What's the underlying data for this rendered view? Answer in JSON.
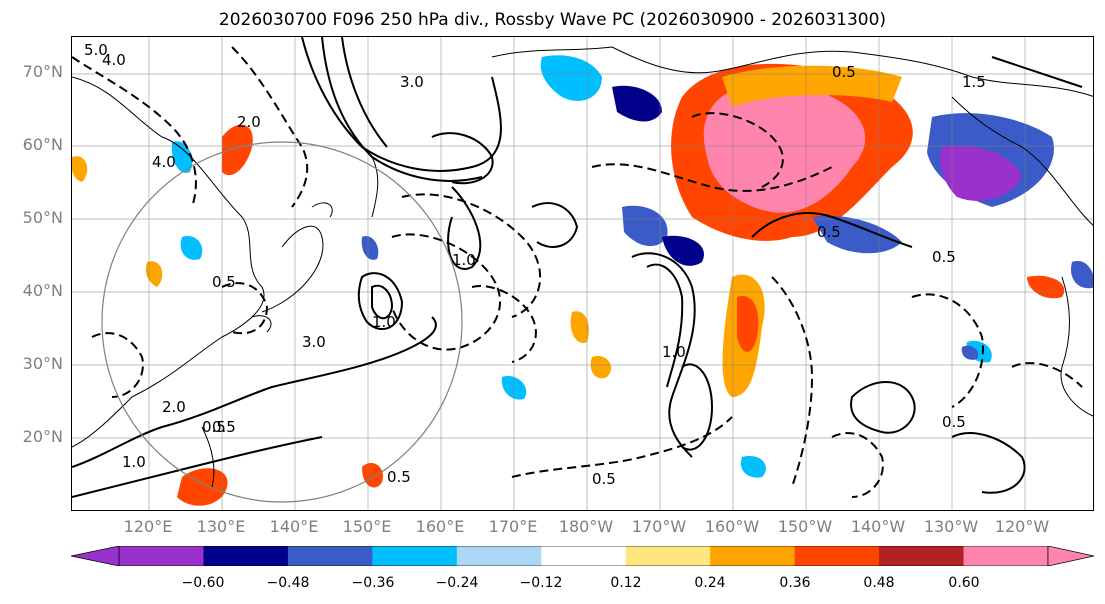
{
  "title": "2026030700 F096 250 hPa div., Rossby Wave PC (2026030900 - 2026031300)",
  "lat_labels": [
    "70°N",
    "60°N",
    "50°N",
    "40°N",
    "30°N",
    "20°N"
  ],
  "lon_labels": [
    "120°E",
    "130°E",
    "140°E",
    "150°E",
    "160°E",
    "170°E",
    "180°W",
    "170°W",
    "160°W",
    "150°W",
    "140°W",
    "130°W",
    "120°W"
  ],
  "contour_labels": [
    "5.0",
    "4.0",
    "3.0",
    "3.0",
    "2.0",
    "4.0",
    "1.0",
    "0.5",
    "1.0",
    "0.5",
    "2.0",
    "0.5",
    "0.5",
    "0.5",
    "0.5",
    "0.5",
    "1.0",
    "1.5",
    "0.5",
    "1.0",
    "0.5"
  ],
  "colorbar": {
    "ticks": [
      "−0.60",
      "−0.48",
      "−0.36",
      "−0.24",
      "−0.12",
      "0.12",
      "0.24",
      "0.36",
      "0.48",
      "0.60"
    ],
    "colors": [
      "#9932cc",
      "#00008b",
      "#3a5bc8",
      "#00bfff",
      "#add8f5",
      "#ffffff",
      "#ffe680",
      "#ffa500",
      "#ff4500",
      "#b22222",
      "#ff85ad"
    ]
  },
  "colors": {
    "land_outline": "#000000",
    "grid": "#7f7f7f",
    "circle": "#808080"
  }
}
